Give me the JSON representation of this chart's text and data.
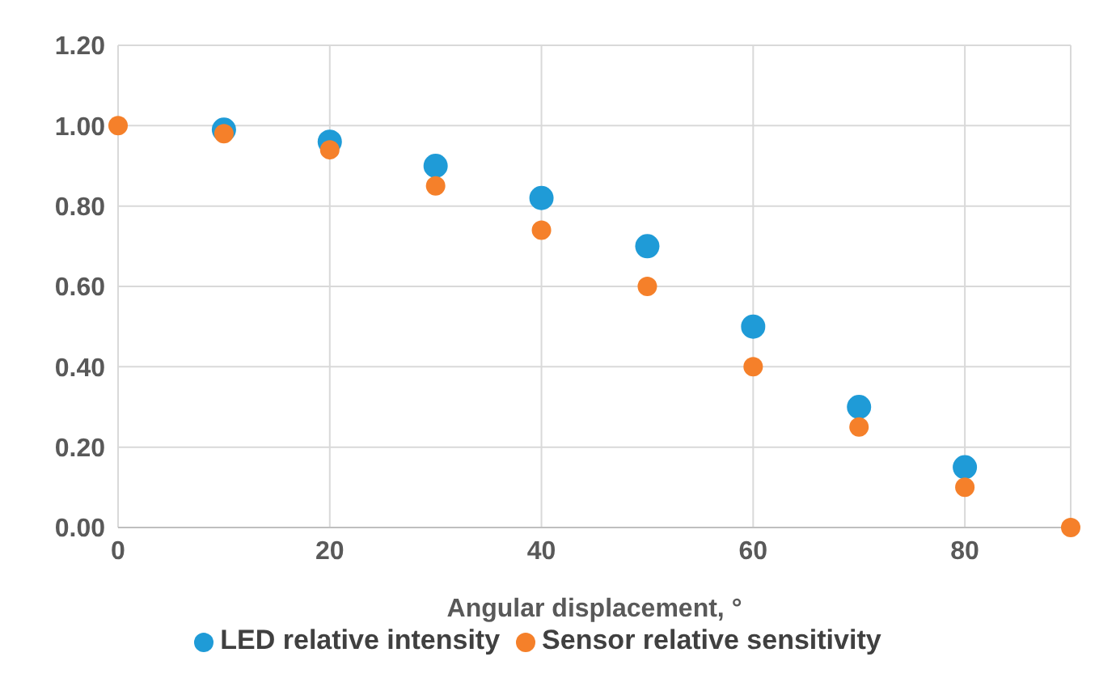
{
  "chart_data": {
    "type": "scatter",
    "xlabel": "Angular displacement, °",
    "x": [
      0,
      10,
      20,
      30,
      40,
      50,
      60,
      70,
      80,
      90
    ],
    "series": [
      {
        "name": "LED relative intensity",
        "color": "#1f9bd7",
        "values": [
          null,
          0.99,
          0.96,
          0.9,
          0.82,
          0.7,
          0.5,
          0.3,
          0.15,
          null
        ]
      },
      {
        "name": "Sensor relative sensitivity",
        "color": "#f5802a",
        "values": [
          1.0,
          0.98,
          0.94,
          0.85,
          0.74,
          0.6,
          0.4,
          0.25,
          0.1,
          0.0
        ]
      }
    ],
    "xlim": [
      0,
      90
    ],
    "xticks": [
      0,
      20,
      40,
      60,
      80
    ],
    "ylim": [
      0,
      1.2
    ],
    "yticks": [
      {
        "value": 0,
        "label": "0.00"
      },
      {
        "value": 0.2,
        "label": "0.20"
      },
      {
        "value": 0.4,
        "label": "0.40"
      },
      {
        "value": 0.6,
        "label": "0.60"
      },
      {
        "value": 0.8,
        "label": "0.80"
      },
      {
        "value": 1.0,
        "label": "1.00"
      },
      {
        "value": 1.2,
        "label": "1.20"
      }
    ],
    "grid": true,
    "legend": "bottom",
    "marker": "circle"
  }
}
